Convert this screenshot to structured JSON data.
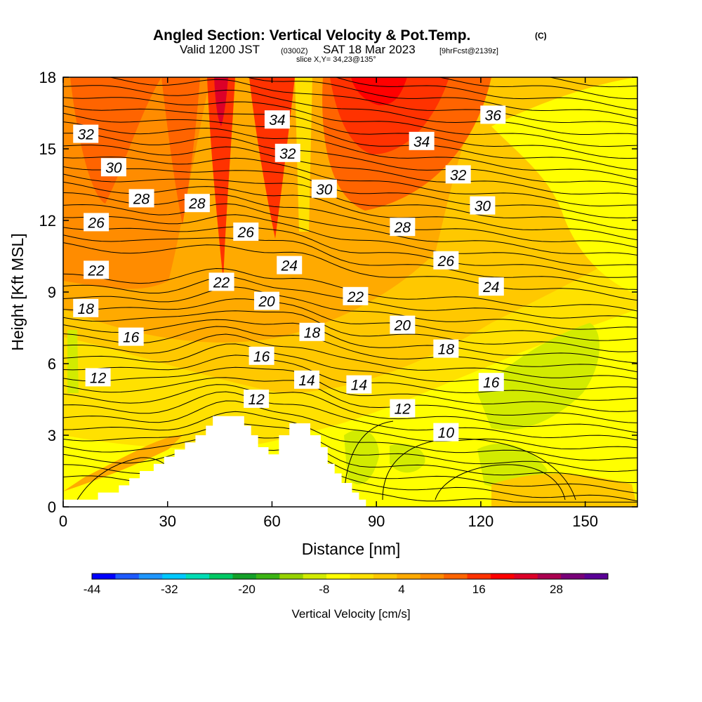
{
  "title": {
    "main": "Angled Section: Vertical Velocity & Pot.Temp.",
    "main_suffix": "(C)",
    "valid_prefix": "Valid 1200 JST",
    "valid_utc": "(0300Z)",
    "valid_date": "SAT 18 Mar 2023",
    "forecast": "[9hrFcst@2139z]",
    "slice": "slice X,Y= 34,23@135°"
  },
  "chart_data": {
    "type": "heatmap",
    "xlabel": "Distance [nm]",
    "ylabel": "Height [Kft MSL]",
    "xlim": [
      0,
      165
    ],
    "ylim": [
      0,
      18
    ],
    "x_ticks": [
      0,
      30,
      60,
      90,
      120,
      150
    ],
    "y_ticks": [
      0,
      3,
      6,
      9,
      12,
      15,
      18
    ],
    "x_tick_labels": [
      "0",
      "30",
      "60",
      "90",
      "120",
      "150"
    ],
    "y_tick_labels": [
      "0",
      "3",
      "6",
      "9",
      "12",
      "15",
      "18"
    ],
    "colorbar": {
      "label": "Vertical Velocity [cm/s]",
      "min": -44,
      "max": 36,
      "step": 4,
      "tick_values": [
        -44,
        -32,
        -20,
        -8,
        4,
        16,
        28
      ],
      "tick_labels": [
        "-44",
        "-32",
        "-20",
        "-8",
        "4",
        "16",
        "28"
      ],
      "colors": [
        "#0000ff",
        "#1e5aff",
        "#1e96ff",
        "#00c8ff",
        "#00dcb4",
        "#00c864",
        "#14a028",
        "#3cb414",
        "#96d200",
        "#d2eb00",
        "#ffff00",
        "#ffe100",
        "#ffc800",
        "#ffaa00",
        "#ff8c00",
        "#ff6400",
        "#ff3200",
        "#ff0000",
        "#dc0028",
        "#aa0050",
        "#780078",
        "#5a0096"
      ]
    },
    "contour_field": "Potential Temperature (C)",
    "contour_labels": [
      {
        "text": "32",
        "x": 6.5,
        "y": 15.6
      },
      {
        "text": "30",
        "x": 14.5,
        "y": 14.2
      },
      {
        "text": "28",
        "x": 22.5,
        "y": 12.9
      },
      {
        "text": "28",
        "x": 38.5,
        "y": 12.7
      },
      {
        "text": "26",
        "x": 9.5,
        "y": 11.9
      },
      {
        "text": "22",
        "x": 9.5,
        "y": 9.9
      },
      {
        "text": "18",
        "x": 6.5,
        "y": 8.3
      },
      {
        "text": "16",
        "x": 19.5,
        "y": 7.1
      },
      {
        "text": "12",
        "x": 10.0,
        "y": 5.4
      },
      {
        "text": "34",
        "x": 61.5,
        "y": 16.2
      },
      {
        "text": "32",
        "x": 64.5,
        "y": 14.8
      },
      {
        "text": "30",
        "x": 75.0,
        "y": 13.3
      },
      {
        "text": "26",
        "x": 52.5,
        "y": 11.5
      },
      {
        "text": "24",
        "x": 65.0,
        "y": 10.1
      },
      {
        "text": "22",
        "x": 45.5,
        "y": 9.4
      },
      {
        "text": "20",
        "x": 58.5,
        "y": 8.6
      },
      {
        "text": "18",
        "x": 71.5,
        "y": 7.3
      },
      {
        "text": "16",
        "x": 57.0,
        "y": 6.3
      },
      {
        "text": "14",
        "x": 70.0,
        "y": 5.3
      },
      {
        "text": "12",
        "x": 55.5,
        "y": 4.5
      },
      {
        "text": "14",
        "x": 85.0,
        "y": 5.1
      },
      {
        "text": "36",
        "x": 123.5,
        "y": 16.4
      },
      {
        "text": "34",
        "x": 103.0,
        "y": 15.3
      },
      {
        "text": "32",
        "x": 113.5,
        "y": 13.9
      },
      {
        "text": "30",
        "x": 120.5,
        "y": 12.6
      },
      {
        "text": "28",
        "x": 97.5,
        "y": 11.7
      },
      {
        "text": "26",
        "x": 110.0,
        "y": 10.3
      },
      {
        "text": "24",
        "x": 123.0,
        "y": 9.2
      },
      {
        "text": "22",
        "x": 84.0,
        "y": 8.8
      },
      {
        "text": "20",
        "x": 97.5,
        "y": 7.6
      },
      {
        "text": "18",
        "x": 110.0,
        "y": 6.6
      },
      {
        "text": "16",
        "x": 123.0,
        "y": 5.2
      },
      {
        "text": "12",
        "x": 97.5,
        "y": 4.1
      },
      {
        "text": "10",
        "x": 110.0,
        "y": 3.1
      }
    ],
    "terrain": [
      [
        0,
        0.3
      ],
      [
        10,
        0.3
      ],
      [
        10,
        0.6
      ],
      [
        16,
        0.6
      ],
      [
        16,
        0.9
      ],
      [
        19,
        0.9
      ],
      [
        19,
        1.2
      ],
      [
        22,
        1.2
      ],
      [
        22,
        1.5
      ],
      [
        26,
        1.5
      ],
      [
        26,
        1.8
      ],
      [
        29,
        1.8
      ],
      [
        29,
        2.1
      ],
      [
        32,
        2.1
      ],
      [
        32,
        2.4
      ],
      [
        35,
        2.4
      ],
      [
        35,
        2.7
      ],
      [
        38,
        2.7
      ],
      [
        38,
        3.0
      ],
      [
        41,
        3.0
      ],
      [
        41,
        3.4
      ],
      [
        43,
        3.4
      ],
      [
        43,
        3.8
      ],
      [
        52,
        3.8
      ],
      [
        52,
        3.4
      ],
      [
        54,
        3.4
      ],
      [
        54,
        3.0
      ],
      [
        56,
        3.0
      ],
      [
        56,
        2.5
      ],
      [
        59,
        2.5
      ],
      [
        59,
        2.2
      ],
      [
        62,
        2.2
      ],
      [
        62,
        3.0
      ],
      [
        65,
        3.0
      ],
      [
        65,
        3.5
      ],
      [
        71,
        3.5
      ],
      [
        71,
        3.0
      ],
      [
        74,
        3.0
      ],
      [
        74,
        2.5
      ],
      [
        76,
        2.5
      ],
      [
        76,
        1.8
      ],
      [
        78,
        1.8
      ],
      [
        78,
        1.4
      ],
      [
        80,
        1.4
      ],
      [
        80,
        1.0
      ],
      [
        83,
        1.0
      ],
      [
        83,
        0.6
      ],
      [
        85,
        0.6
      ],
      [
        85,
        0.3
      ],
      [
        87,
        0.3
      ],
      [
        87,
        0
      ]
    ]
  }
}
